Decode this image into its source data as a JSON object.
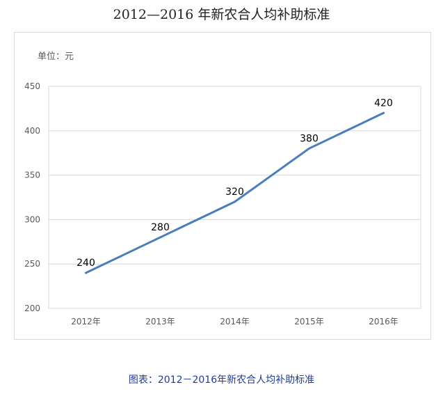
{
  "page": {
    "title": "2012—2016 年新农合人均补助标准",
    "unit_label": "单位：元",
    "caption": "图表：2012－2016年新农合人均补助标准"
  },
  "chart_data": {
    "type": "line",
    "categories": [
      "2012年",
      "2013年",
      "2014年",
      "2015年",
      "2016年"
    ],
    "series": [
      {
        "values": [
          240,
          280,
          320,
          380,
          420
        ],
        "color": "#4a7ebb"
      }
    ],
    "data_labels": [
      "240",
      "280",
      "320",
      "380",
      "420"
    ],
    "ylim": [
      200,
      450
    ],
    "yticks": [
      200,
      250,
      300,
      350,
      400,
      450
    ],
    "grid": true,
    "legend": "none"
  }
}
